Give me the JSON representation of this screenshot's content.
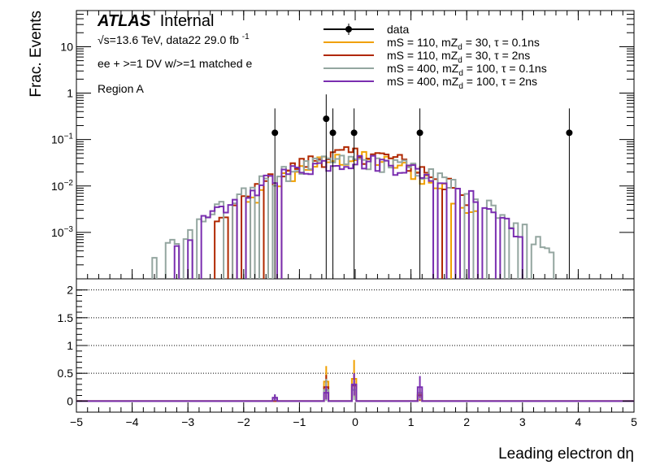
{
  "chart_data": {
    "type": "step-histogram-with-ratio",
    "ylabel": "Frac. Events",
    "xlabel": "Leading electron dη",
    "xlim": [
      -5,
      5
    ],
    "top_ylim_log": [
      0.0001,
      60
    ],
    "ratio_ylim": [
      -0.2,
      2.2
    ],
    "bin_width": 0.08,
    "x_ticks": [
      -5,
      -4,
      -3,
      -2,
      -1,
      0,
      1,
      2,
      3,
      4,
      5
    ],
    "x_tick_labels": [
      "−5",
      "−4",
      "−3",
      "−2",
      "−1",
      "0",
      "1",
      "2",
      "3",
      "4",
      "5"
    ],
    "top_y_ticks": [
      0.001,
      0.01,
      0.1,
      1,
      10
    ],
    "top_y_tick_labels": [
      {
        "base": "10",
        "exp": "−3"
      },
      {
        "base": "10",
        "exp": "−2"
      },
      {
        "base": "10",
        "exp": "−1"
      },
      {
        "base": "1",
        "exp": ""
      },
      {
        "base": "10",
        "exp": ""
      }
    ],
    "ratio_y_ticks": [
      0,
      0.5,
      1,
      1.5,
      2
    ],
    "ratio_y_tick_labels": [
      "0",
      "0.5",
      "1",
      "1.5",
      "2"
    ],
    "atlas_label": "ATLAS",
    "atlas_status": "Internal",
    "energy_text": "√s=13.6 TeV, data22 29.0 fb",
    "energy_exp": "-1",
    "selection_text": "ee + >=1 DV w/>=1 matched e",
    "region_text": "Region A",
    "data_points": [
      {
        "x": -1.44,
        "y": 0.14
      },
      {
        "x": -0.52,
        "y": 0.28
      },
      {
        "x": -0.4,
        "y": 0.14
      },
      {
        "x": -0.02,
        "y": 0.14
      },
      {
        "x": 1.16,
        "y": 0.14
      },
      {
        "x": 3.84,
        "y": 0.14
      }
    ],
    "series": [
      {
        "name": "data",
        "legend": {
          "pre": "data",
          "sub": "",
          "post": ""
        },
        "color": "#000000",
        "values": []
      },
      {
        "name": "mS = 110, mZd = 30, τ = 0.1ns",
        "legend": {
          "pre": "mS = 110, mZ",
          "sub": "d",
          "post": " = 30, τ = 0.1ns"
        },
        "color": "#f0a000",
        "shape": "gauss",
        "amplitude": 0.04,
        "sigma": 0.9,
        "range": [
          -2.0,
          2.2
        ],
        "ratio_peaks": [
          {
            "x": -0.52,
            "value": 0.35,
            "err": 0.28
          },
          {
            "x": -0.02,
            "value": 0.4,
            "err": 0.34
          },
          {
            "x": 1.16,
            "value": 0.12,
            "err": 0.1
          }
        ]
      },
      {
        "name": "mS = 110, mZd = 30, τ = 2ns",
        "legend": {
          "pre": "mS = 110, mZ",
          "sub": "d",
          "post": " = 30, τ = 2ns"
        },
        "color": "#b02800",
        "shape": "gauss",
        "amplitude": 0.05,
        "sigma": 0.95,
        "range": [
          -2.6,
          2.0
        ],
        "ratio_peaks": [
          {
            "x": -0.52,
            "value": 0.25,
            "err": 0.22
          },
          {
            "x": -0.02,
            "value": 0.28,
            "err": 0.2
          },
          {
            "x": 1.16,
            "value": 0.1,
            "err": 0.1
          }
        ]
      },
      {
        "name": "mS = 400, mZd = 100, τ = 0.1ns",
        "legend": {
          "pre": "mS = 400, mZ",
          "sub": "d",
          "post": " = 100, τ = 0.1ns"
        },
        "color": "#94a6a0",
        "shape": "gauss",
        "amplitude": 0.035,
        "sigma": 1.15,
        "range": [
          -3.7,
          3.6
        ],
        "ratio_peaks": [
          {
            "x": -1.44,
            "value": 0.06,
            "err": 0.06
          },
          {
            "x": -0.52,
            "value": 0.2,
            "err": 0.2
          },
          {
            "x": -0.02,
            "value": 0.2,
            "err": 0.18
          },
          {
            "x": 1.16,
            "value": 0.15,
            "err": 0.12
          }
        ]
      },
      {
        "name": "mS = 400, mZd = 100, τ = 2ns",
        "legend": {
          "pre": "mS = 400, mZ",
          "sub": "d",
          "post": " = 100, τ = 2ns"
        },
        "color": "#7a2eb0",
        "shape": "gauss",
        "amplitude": 0.035,
        "sigma": 1.1,
        "range": [
          -3.2,
          3.0
        ],
        "ratio_peaks": [
          {
            "x": -1.44,
            "value": 0.06,
            "err": 0.06
          },
          {
            "x": -0.52,
            "value": 0.15,
            "err": 0.12
          },
          {
            "x": -0.02,
            "value": 0.3,
            "err": 0.2
          },
          {
            "x": 1.16,
            "value": 0.25,
            "err": 0.2
          }
        ]
      }
    ]
  }
}
